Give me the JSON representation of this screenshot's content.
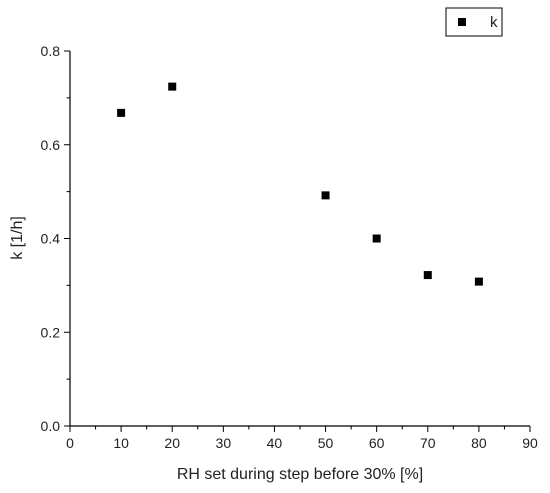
{
  "chart_data": {
    "type": "scatter",
    "title": "",
    "xlabel": "RH set during step before 30% [%]",
    "ylabel": "k [1/h]",
    "xlim": [
      0,
      90
    ],
    "ylim": [
      0.0,
      0.8
    ],
    "x_ticks": [
      0,
      10,
      20,
      30,
      40,
      50,
      60,
      70,
      80,
      90
    ],
    "x_tick_labels": [
      "0",
      "10",
      "20",
      "30",
      "40",
      "50",
      "60",
      "70",
      "80",
      "90"
    ],
    "y_ticks": [
      0.0,
      0.2,
      0.4,
      0.6,
      0.8
    ],
    "y_tick_labels": [
      "0.0",
      "0.2",
      "0.4",
      "0.6",
      "0.8"
    ],
    "grid": false,
    "legend": {
      "placement": "top-right",
      "entries": [
        "k"
      ]
    },
    "series": [
      {
        "name": "k",
        "marker": "square",
        "color": "#000000",
        "x": [
          10,
          20,
          50,
          60,
          70,
          80
        ],
        "y": [
          0.668,
          0.724,
          0.492,
          0.4,
          0.322,
          0.308
        ]
      }
    ]
  }
}
